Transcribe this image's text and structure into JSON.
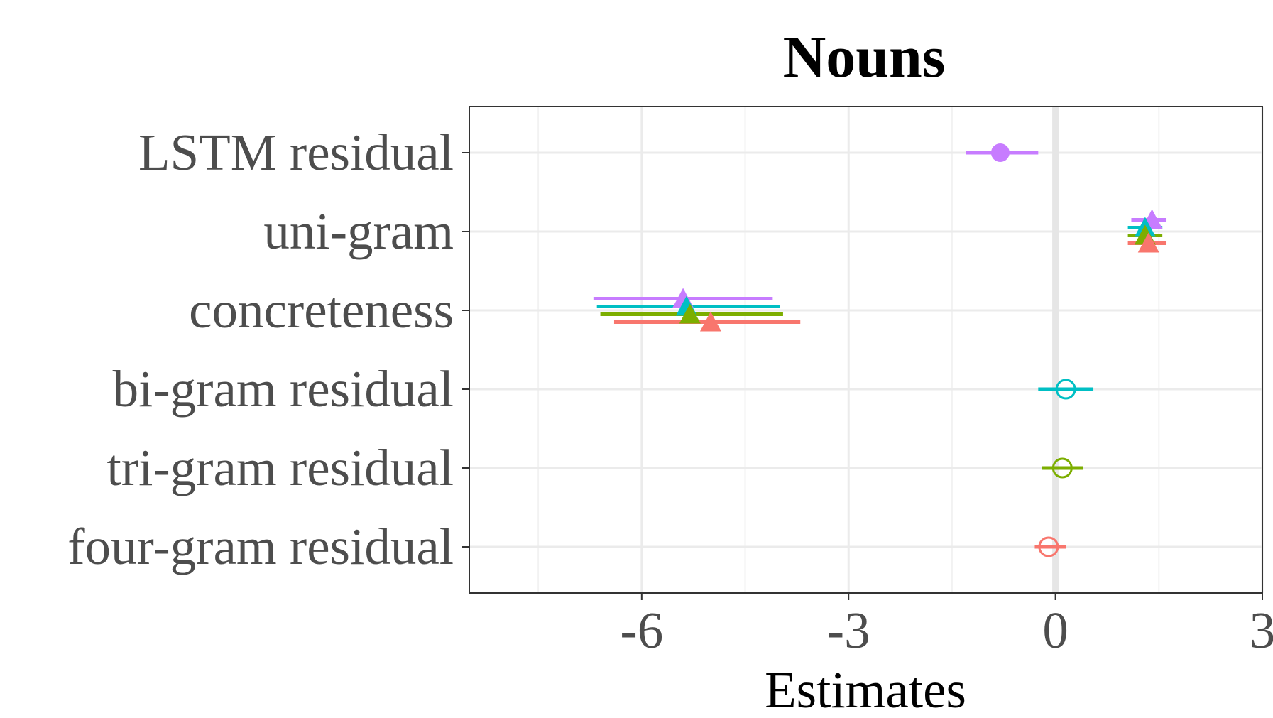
{
  "chart_data": {
    "type": "scatter",
    "title": "Nouns",
    "xlabel": "Estimates",
    "ylabel": "",
    "xlim": [
      -8.5,
      3
    ],
    "xticks": [
      -6,
      -3,
      0,
      3
    ],
    "xtick_labels": [
      "-6",
      "-3",
      "0",
      "3"
    ],
    "categories": [
      "LSTM residual",
      "uni-gram",
      "concreteness",
      "bi-gram residual",
      "tri-gram residual",
      "four-gram residual"
    ],
    "grid": true,
    "legend": "none",
    "series": [
      {
        "color": "#C77CFF",
        "points": [
          {
            "category": "LSTM residual",
            "estimate": -0.8,
            "ci_low": -1.3,
            "ci_high": -0.25,
            "shape": "circle-filled"
          },
          {
            "category": "uni-gram",
            "estimate": 1.4,
            "ci_low": 1.1,
            "ci_high": 1.6,
            "shape": "triangle"
          },
          {
            "category": "concreteness",
            "estimate": -5.4,
            "ci_low": -6.7,
            "ci_high": -4.1,
            "shape": "triangle"
          }
        ]
      },
      {
        "color": "#00BFC4",
        "points": [
          {
            "category": "uni-gram",
            "estimate": 1.3,
            "ci_low": 1.05,
            "ci_high": 1.55,
            "shape": "triangle"
          },
          {
            "category": "concreteness",
            "estimate": -5.35,
            "ci_low": -6.65,
            "ci_high": -4.0,
            "shape": "triangle"
          },
          {
            "category": "bi-gram residual",
            "estimate": 0.15,
            "ci_low": -0.25,
            "ci_high": 0.55,
            "shape": "circle-open"
          }
        ]
      },
      {
        "color": "#7CAE00",
        "points": [
          {
            "category": "uni-gram",
            "estimate": 1.3,
            "ci_low": 1.05,
            "ci_high": 1.55,
            "shape": "triangle"
          },
          {
            "category": "concreteness",
            "estimate": -5.3,
            "ci_low": -6.6,
            "ci_high": -3.95,
            "shape": "triangle"
          },
          {
            "category": "tri-gram residual",
            "estimate": 0.1,
            "ci_low": -0.2,
            "ci_high": 0.4,
            "shape": "circle-open"
          }
        ]
      },
      {
        "color": "#F8766D",
        "points": [
          {
            "category": "uni-gram",
            "estimate": 1.35,
            "ci_low": 1.05,
            "ci_high": 1.6,
            "shape": "triangle"
          },
          {
            "category": "concreteness",
            "estimate": -5.0,
            "ci_low": -6.4,
            "ci_high": -3.7,
            "shape": "triangle"
          },
          {
            "category": "four-gram residual",
            "estimate": -0.1,
            "ci_low": -0.3,
            "ci_high": 0.15,
            "shape": "circle-open"
          }
        ]
      }
    ]
  }
}
